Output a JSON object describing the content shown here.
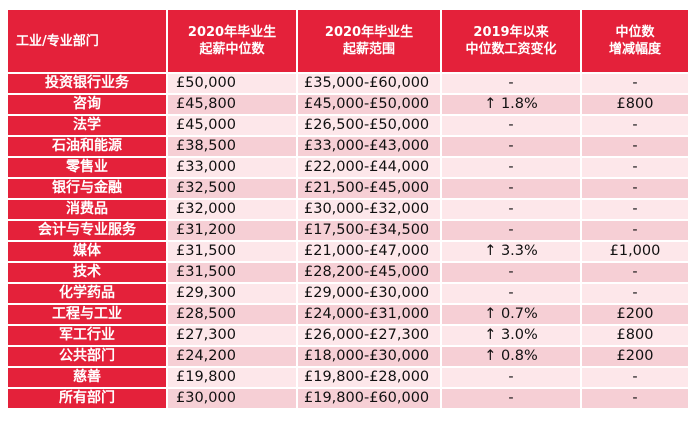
{
  "headers": [
    "工业/专业部门",
    "2020年毕业生\n起薪中位数",
    "2020年毕业生\n起薪范围",
    "2019年以来\n中位数工资变化",
    "中位数\n增减幅度"
  ],
  "rows": [
    {
      "sector": "投资银行业务",
      "median": "£50,000",
      "range": "£35,000-£60,000",
      "change": "-",
      "increase": "-"
    },
    {
      "sector": "咨询",
      "median": "£45,800",
      "range": "£45,000-£50,000",
      "change": "↑ 1.8%",
      "increase": "£800"
    },
    {
      "sector": "法学",
      "median": "£45,000",
      "range": "£26,500-£50,000",
      "change": "-",
      "increase": "-"
    },
    {
      "sector": "石油和能源",
      "median": "£38,500",
      "range": "£33,000-£43,000",
      "change": "-",
      "increase": "-"
    },
    {
      "sector": "零售业",
      "median": "£33,000",
      "range": "£22,000-£44,000",
      "change": "-",
      "increase": "-"
    },
    {
      "sector": "银行与金融",
      "median": "£32,500",
      "range": "£21,500-£45,000",
      "change": "-",
      "increase": "-"
    },
    {
      "sector": "消费品",
      "median": "£32,000",
      "range": "£30,000-£32,000",
      "change": "-",
      "increase": "-"
    },
    {
      "sector": "会计与专业服务",
      "median": "£31,200",
      "range": "£17,500-£34,500",
      "change": "-",
      "increase": "-"
    },
    {
      "sector": "媒体",
      "median": "£31,500",
      "range": "£21,000-£47,000",
      "change": "↑ 3.3%",
      "increase": "£1,000"
    },
    {
      "sector": "技术",
      "median": "£31,500",
      "range": "£28,200-£45,000",
      "change": "-",
      "increase": "-"
    },
    {
      "sector": "化学药品",
      "median": "£29,300",
      "range": "£29,000-£30,000",
      "change": "-",
      "increase": "-"
    },
    {
      "sector": "工程与工业",
      "median": "£28,500",
      "range": "£24,000-£31,000",
      "change": "↑ 0.7%",
      "increase": "£200"
    },
    {
      "sector": "军工行业",
      "median": "£27,300",
      "range": "£26,000-£27,300",
      "change": "↑ 3.0%",
      "increase": "£800"
    },
    {
      "sector": "公共部门",
      "median": "£24,200",
      "range": "£18,000-£30,000",
      "change": "↑ 0.8%",
      "increase": "£200"
    },
    {
      "sector": "慈善",
      "median": "£19,800",
      "range": "£19,800-£28,000",
      "change": "-",
      "increase": "-"
    },
    {
      "sector": "所有部门",
      "median": "£30,000",
      "range": "£19,800-£60,000",
      "change": "-",
      "increase": "-"
    }
  ]
}
